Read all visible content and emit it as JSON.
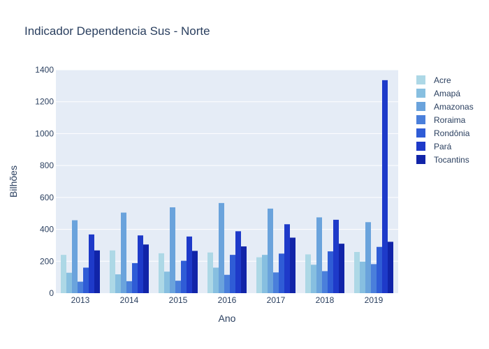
{
  "chart_data": {
    "type": "bar",
    "title": "Indicador Dependencia Sus - Norte",
    "xlabel": "Ano",
    "ylabel": "Bilhões",
    "categories": [
      "2013",
      "2014",
      "2015",
      "2016",
      "2017",
      "2018",
      "2019"
    ],
    "ylim": [
      0,
      1400
    ],
    "yticks": [
      0,
      200,
      400,
      600,
      800,
      1000,
      1200,
      1400
    ],
    "grid": true,
    "legend_position": "right",
    "plot_background": "#e5ecf6",
    "series": [
      {
        "name": "Acre",
        "color": "#add8e6",
        "values": [
          240,
          268,
          250,
          255,
          225,
          243,
          258
        ]
      },
      {
        "name": "Amapá",
        "color": "#87bfe0",
        "values": [
          128,
          118,
          135,
          160,
          240,
          178,
          198
        ]
      },
      {
        "name": "Amazonas",
        "color": "#6aa3dc",
        "values": [
          457,
          505,
          538,
          565,
          530,
          475,
          445
        ]
      },
      {
        "name": "Roraima",
        "color": "#4a7fdb",
        "values": [
          72,
          75,
          78,
          115,
          130,
          138,
          182
        ]
      },
      {
        "name": "Rondônia",
        "color": "#2f5cd6",
        "values": [
          160,
          188,
          203,
          240,
          248,
          262,
          290
        ]
      },
      {
        "name": "Pará",
        "color": "#1e3ac9",
        "values": [
          368,
          362,
          355,
          388,
          432,
          460,
          1335
        ]
      },
      {
        "name": "Tocantins",
        "color": "#1124a8",
        "values": [
          268,
          305,
          265,
          293,
          348,
          310,
          322
        ]
      }
    ]
  }
}
